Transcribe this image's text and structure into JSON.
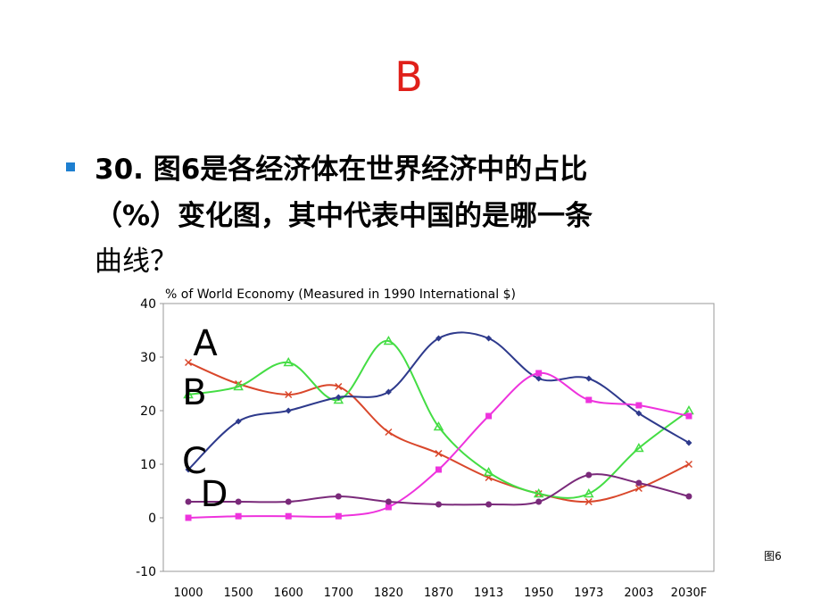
{
  "slide": {
    "answer": "B",
    "question_lines": [
      "30. 图6是各经济体在世界经济中的占比",
      "（%）变化图，其中代表中国的是哪一条",
      "曲线？"
    ],
    "figure_label": "图6"
  },
  "chart_data": {
    "type": "line",
    "title": "% of World Economy (Measured in 1990 International $)",
    "categories": [
      "1000",
      "1500",
      "1600",
      "1700",
      "1820",
      "1870",
      "1913",
      "1950",
      "1973",
      "2003",
      "2030F"
    ],
    "series": [
      {
        "color": "#d9472b",
        "marker": "x",
        "values": [
          29,
          25,
          23,
          24.5,
          16,
          12,
          7.5,
          4.5,
          3,
          5.5,
          10
        ]
      },
      {
        "color": "#44dd44",
        "marker": "triangle",
        "values": [
          23,
          24.5,
          29,
          22,
          33,
          17,
          8.5,
          4.5,
          4.5,
          13,
          20
        ]
      },
      {
        "color": "#2e3a8c",
        "marker": "diamond",
        "values": [
          9,
          18,
          20,
          22.5,
          23.5,
          33.5,
          33.5,
          26,
          26,
          19.5,
          14
        ]
      },
      {
        "color": "#ee33dd",
        "marker": "square",
        "values": [
          0,
          0.3,
          0.3,
          0.3,
          2,
          9,
          19,
          27,
          22,
          21,
          19
        ]
      },
      {
        "color": "#7a2a7a",
        "marker": "circle",
        "values": [
          3,
          3,
          3,
          4,
          3,
          2.5,
          2.5,
          3,
          8,
          6.5,
          4
        ]
      }
    ],
    "annotations": [
      "A",
      "B",
      "C",
      "D"
    ],
    "ylim": [
      -10,
      40
    ],
    "yticks": [
      -10,
      0,
      10,
      20,
      30,
      40
    ]
  }
}
